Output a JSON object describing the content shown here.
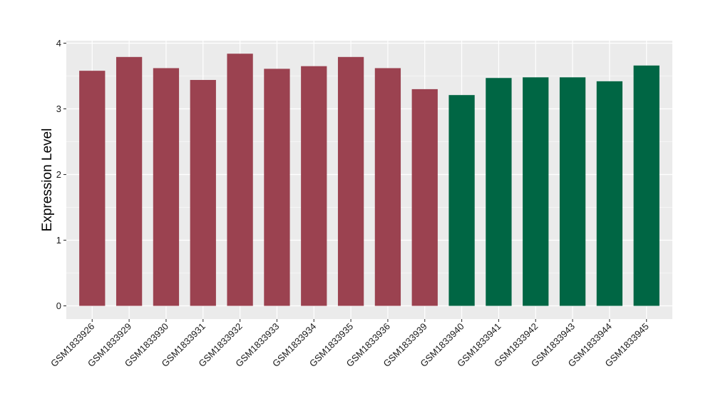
{
  "chart_data": {
    "type": "bar",
    "title": "",
    "xlabel": "",
    "ylabel": "Expression Level",
    "ylim": [
      0,
      4
    ],
    "yticks": [
      0,
      1,
      2,
      3,
      4
    ],
    "grid": true,
    "legend": "none",
    "categories": [
      "GSM1833926",
      "GSM1833929",
      "GSM1833930",
      "GSM1833931",
      "GSM1833932",
      "GSM1833933",
      "GSM1833934",
      "GSM1833935",
      "GSM1833936",
      "GSM1833939",
      "GSM1833940",
      "GSM1833941",
      "GSM1833942",
      "GSM1833943",
      "GSM1833944",
      "GSM1833945"
    ],
    "values": [
      3.58,
      3.79,
      3.62,
      3.44,
      3.84,
      3.61,
      3.65,
      3.79,
      3.62,
      3.3,
      3.21,
      3.47,
      3.48,
      3.48,
      3.42,
      3.66
    ],
    "bar_colors": [
      "#9B4250",
      "#9B4250",
      "#9B4250",
      "#9B4250",
      "#9B4250",
      "#9B4250",
      "#9B4250",
      "#9B4250",
      "#9B4250",
      "#9B4250",
      "#006644",
      "#006644",
      "#006644",
      "#006644",
      "#006644",
      "#006644"
    ],
    "panel_background": "#EBEBEB",
    "grid_color": "#FFFFFF"
  }
}
